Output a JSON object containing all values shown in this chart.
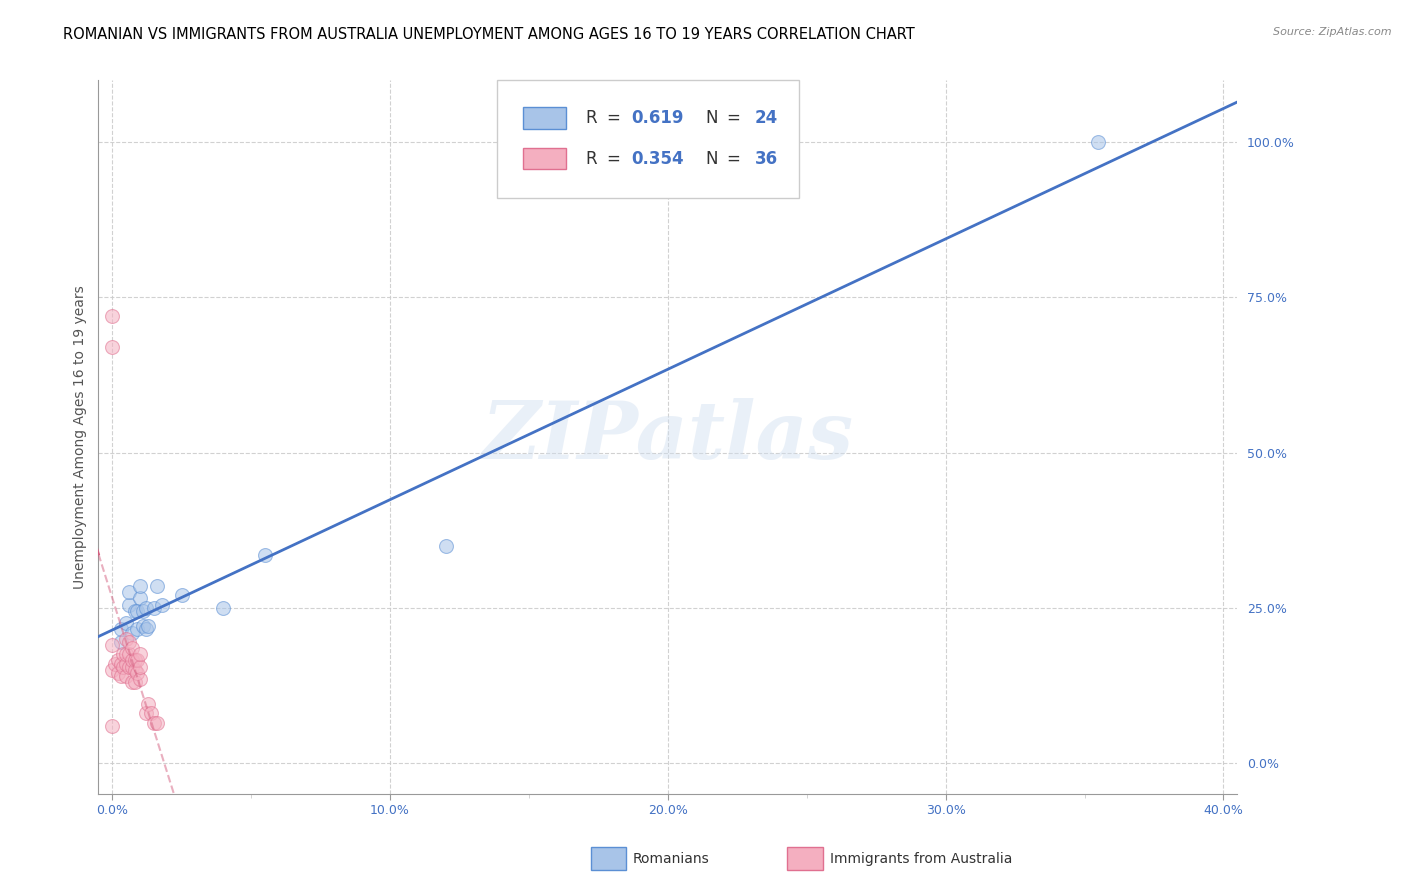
{
  "title": "ROMANIAN VS IMMIGRANTS FROM AUSTRALIA UNEMPLOYMENT AMONG AGES 16 TO 19 YEARS CORRELATION CHART",
  "source": "Source: ZipAtlas.com",
  "ylabel": "Unemployment Among Ages 16 to 19 years",
  "xlim": [
    -0.005,
    0.405
  ],
  "ylim": [
    -0.05,
    1.1
  ],
  "blue_R": 0.619,
  "blue_N": 24,
  "pink_R": 0.354,
  "pink_N": 36,
  "blue_color": "#a8c4e8",
  "pink_color": "#f4afc0",
  "blue_edge_color": "#5b8fd4",
  "pink_edge_color": "#e07090",
  "blue_line_color": "#4472c4",
  "pink_line_color": "#d46080",
  "legend_label_blue": "Romanians",
  "legend_label_pink": "Immigrants from Australia",
  "watermark": "ZIPatlas",
  "blue_scatter_x": [
    0.003,
    0.003,
    0.005,
    0.006,
    0.006,
    0.007,
    0.008,
    0.009,
    0.009,
    0.01,
    0.01,
    0.011,
    0.011,
    0.012,
    0.012,
    0.013,
    0.015,
    0.016,
    0.018,
    0.025,
    0.04,
    0.055,
    0.12,
    0.355
  ],
  "blue_scatter_y": [
    0.195,
    0.215,
    0.225,
    0.255,
    0.275,
    0.21,
    0.245,
    0.215,
    0.245,
    0.265,
    0.285,
    0.22,
    0.245,
    0.215,
    0.25,
    0.22,
    0.25,
    0.285,
    0.255,
    0.27,
    0.25,
    0.335,
    0.35,
    1.0
  ],
  "pink_scatter_x": [
    0.0,
    0.0,
    0.0,
    0.0,
    0.0,
    0.001,
    0.002,
    0.002,
    0.003,
    0.003,
    0.004,
    0.004,
    0.005,
    0.005,
    0.005,
    0.005,
    0.006,
    0.006,
    0.006,
    0.007,
    0.007,
    0.007,
    0.007,
    0.008,
    0.008,
    0.008,
    0.009,
    0.009,
    0.01,
    0.01,
    0.01,
    0.012,
    0.013,
    0.014,
    0.015,
    0.016
  ],
  "pink_scatter_y": [
    0.67,
    0.72,
    0.15,
    0.19,
    0.06,
    0.16,
    0.145,
    0.165,
    0.14,
    0.16,
    0.155,
    0.175,
    0.14,
    0.16,
    0.175,
    0.2,
    0.155,
    0.175,
    0.195,
    0.13,
    0.155,
    0.165,
    0.185,
    0.13,
    0.15,
    0.165,
    0.145,
    0.165,
    0.135,
    0.155,
    0.175,
    0.08,
    0.095,
    0.08,
    0.065,
    0.065
  ],
  "bg_color": "#ffffff",
  "grid_color": "#cccccc",
  "title_fontsize": 10.5,
  "axis_label_fontsize": 10,
  "tick_fontsize": 9,
  "marker_size": 100,
  "marker_alpha": 0.55
}
